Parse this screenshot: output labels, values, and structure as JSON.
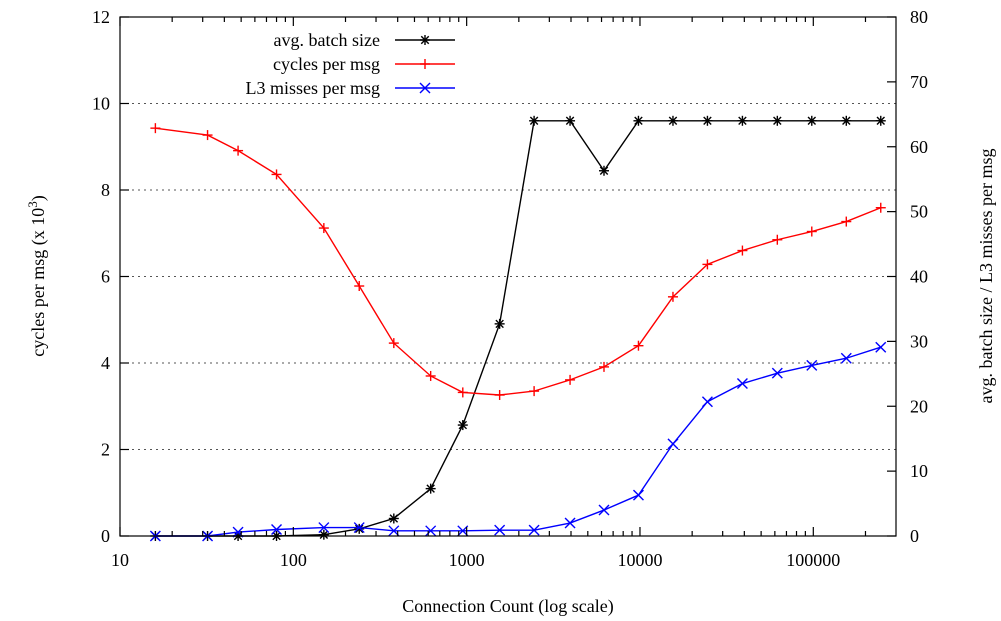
{
  "chart_data": {
    "type": "line",
    "x_scale": "log",
    "xlabel": "Connection Count (log scale)",
    "ylabel_left": "cycles per msg (x 10",
    "ylabel_left_exp": "3",
    "ylabel_left_close": ")",
    "ylabel_right": "avg. batch size / L3 misses per msg",
    "xlim": [
      10,
      300000
    ],
    "ylim_left": [
      0,
      12
    ],
    "ylim_right": [
      0,
      80
    ],
    "x_ticks": [
      10,
      100,
      1000,
      10000,
      100000
    ],
    "x_tick_labels": [
      "10",
      "100",
      "1000",
      "10000",
      "100000"
    ],
    "y_left_ticks": [
      0,
      2,
      4,
      6,
      8,
      10,
      12
    ],
    "y_left_tick_labels": [
      "0",
      "2",
      "4",
      "6",
      "8",
      "10",
      "12"
    ],
    "y_right_ticks": [
      0,
      10,
      20,
      30,
      40,
      50,
      60,
      70,
      80
    ],
    "y_right_tick_labels": [
      "0",
      "10",
      "20",
      "30",
      "40",
      "50",
      "60",
      "70",
      "80"
    ],
    "grid": "horizontal dotted",
    "legend_position": "top-left",
    "series": [
      {
        "name": "avg. batch size",
        "axis": "right",
        "color": "#000000",
        "marker": "asterisk",
        "x": [
          16,
          32,
          48,
          80,
          150,
          240,
          380,
          620,
          950,
          1550,
          2450,
          3950,
          6200,
          9800,
          15500,
          24500,
          39000,
          62000,
          98000,
          155000,
          245000
        ],
        "y": [
          0,
          0,
          0,
          0,
          0.2,
          1.1,
          2.7,
          7.3,
          17.1,
          32.7,
          64,
          64,
          56.3,
          64,
          64,
          64,
          64,
          64,
          64,
          64,
          64
        ]
      },
      {
        "name": "cycles per msg",
        "axis": "left",
        "color": "#ff0000",
        "marker": "plus",
        "x": [
          16,
          32,
          48,
          80,
          150,
          240,
          380,
          620,
          950,
          1550,
          2450,
          3950,
          6200,
          9800,
          15500,
          24500,
          39000,
          62000,
          98000,
          155000,
          245000
        ],
        "y": [
          9.43,
          9.27,
          8.91,
          8.36,
          7.12,
          5.78,
          4.46,
          3.7,
          3.32,
          3.26,
          3.35,
          3.61,
          3.91,
          4.4,
          5.53,
          6.28,
          6.6,
          6.85,
          7.04,
          7.27,
          7.59
        ]
      },
      {
        "name": "L3 misses per msg",
        "axis": "right",
        "color": "#0000ff",
        "marker": "cross",
        "x": [
          16,
          32,
          48,
          80,
          150,
          240,
          380,
          620,
          950,
          1550,
          2450,
          3950,
          6200,
          9800,
          15500,
          24500,
          39000,
          62000,
          98000,
          155000,
          245000
        ],
        "y": [
          0,
          0,
          0.6,
          1.0,
          1.3,
          1.3,
          0.8,
          0.8,
          0.8,
          0.9,
          0.9,
          2.0,
          4.0,
          6.3,
          14.2,
          20.7,
          23.5,
          25.1,
          26.3,
          27.4,
          29.1
        ]
      }
    ]
  }
}
